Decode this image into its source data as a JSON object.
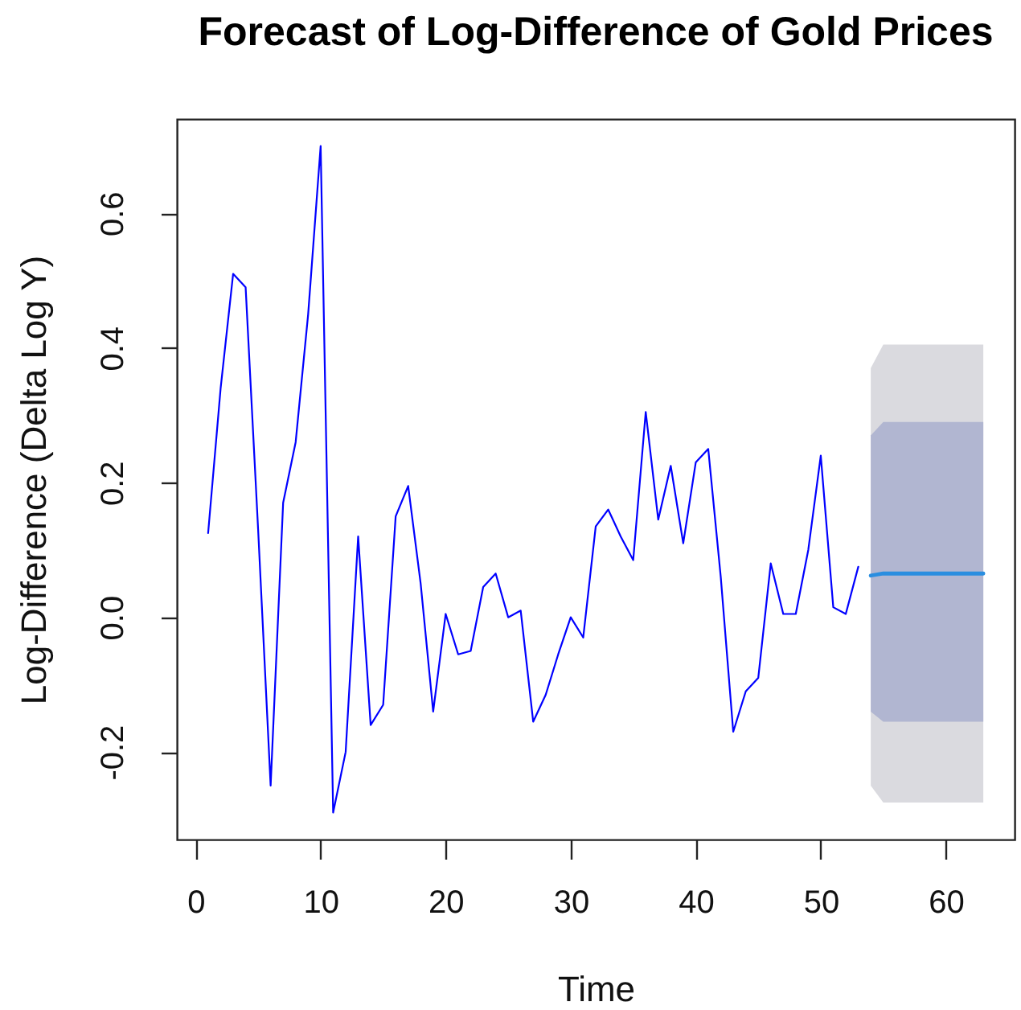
{
  "chart_data": {
    "type": "line",
    "title": "Forecast of Log-Difference of Gold Prices",
    "xlabel": "Time",
    "ylabel": "Log-Difference (Delta Log Y)",
    "xlim": [
      -1.5,
      65.5
    ],
    "ylim": [
      -0.33,
      0.74
    ],
    "xticks": [
      0,
      10,
      20,
      30,
      40,
      50,
      60
    ],
    "yticks": [
      -0.2,
      {
        "value": 0,
        "label": "0.0"
      },
      0.2,
      0.4,
      0.6
    ],
    "grid": false,
    "series": [
      {
        "color": "#0000ff",
        "x": [
          1,
          2,
          3,
          4,
          5,
          6,
          7,
          8,
          9,
          10,
          11,
          12,
          13,
          14,
          15,
          16,
          17,
          18,
          19,
          20,
          21,
          22,
          23,
          24,
          25,
          26,
          27,
          28,
          29,
          30,
          31,
          32,
          33,
          34,
          35,
          36,
          37,
          38,
          39,
          40,
          41,
          42,
          43,
          44,
          45,
          46,
          47,
          48,
          49,
          50,
          51,
          52,
          53
        ],
        "values": [
          0.125,
          0.34,
          0.51,
          0.49,
          0.13,
          -0.25,
          0.17,
          0.26,
          0.45,
          0.7,
          -0.29,
          -0.2,
          0.12,
          -0.16,
          -0.13,
          0.15,
          0.195,
          0.05,
          -0.14,
          0.005,
          -0.055,
          -0.05,
          0.045,
          0.065,
          0.0,
          0.01,
          -0.155,
          -0.115,
          -0.055,
          0.0,
          -0.03,
          0.135,
          0.16,
          0.12,
          0.085,
          0.305,
          0.145,
          0.225,
          0.11,
          0.23,
          0.25,
          0.06,
          -0.17,
          -0.11,
          -0.09,
          0.08,
          0.005,
          0.005,
          0.1,
          0.24,
          0.015,
          0.005,
          0.075
        ]
      },
      {
        "color": "#dadadf",
        "x": [
          54,
          55,
          56,
          57,
          58,
          59,
          60,
          61,
          62,
          63
        ],
        "values": [
          null,
          null,
          null,
          null,
          null,
          null,
          null,
          null,
          null,
          null
        ],
        "lower": [
          -0.25,
          -0.275,
          -0.275,
          -0.275,
          -0.275,
          -0.275,
          -0.275,
          -0.275,
          -0.275,
          -0.275
        ],
        "upper": [
          0.37,
          0.405,
          0.405,
          0.405,
          0.405,
          0.405,
          0.405,
          0.405,
          0.405,
          0.405
        ]
      },
      {
        "color": "#b1b6d1",
        "x": [
          54,
          55,
          56,
          57,
          58,
          59,
          60,
          61,
          62,
          63
        ],
        "values": [
          null,
          null,
          null,
          null,
          null,
          null,
          null,
          null,
          null,
          null
        ],
        "lower": [
          -0.14,
          -0.155,
          -0.155,
          -0.155,
          -0.155,
          -0.155,
          -0.155,
          -0.155,
          -0.155,
          -0.155
        ],
        "upper": [
          0.27,
          0.29,
          0.29,
          0.29,
          0.29,
          0.29,
          0.29,
          0.29,
          0.29,
          0.29
        ]
      },
      {
        "color": "#2a8ee0",
        "x": [
          54,
          55,
          56,
          57,
          58,
          59,
          60,
          61,
          62,
          63
        ],
        "values": [
          0.062,
          0.065,
          0.065,
          0.065,
          0.065,
          0.065,
          0.065,
          0.065,
          0.065,
          0.065
        ]
      }
    ]
  }
}
